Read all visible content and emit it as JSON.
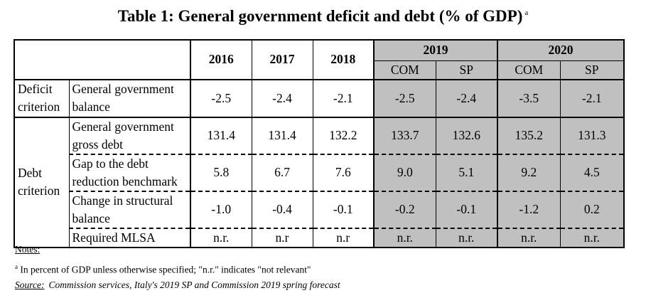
{
  "title": "Table 1: General government deficit and debt (% of GDP)",
  "title_superscript": "a",
  "years_single": [
    "2016",
    "2017",
    "2018"
  ],
  "years_double": [
    "2019",
    "2020"
  ],
  "subcolumns": [
    "COM",
    "SP",
    "COM",
    "SP"
  ],
  "rows": [
    {
      "group": "Deficit criterion",
      "label": "General government balance",
      "values": [
        "-2.5",
        "-2.4",
        "-2.1",
        "-2.5",
        "-2.4",
        "-3.5",
        "-2.1"
      ]
    },
    {
      "group": "Debt criterion",
      "label": "General government gross debt",
      "values": [
        "131.4",
        "131.4",
        "132.2",
        "133.7",
        "132.6",
        "135.2",
        "131.3"
      ]
    },
    {
      "group": "",
      "label": "Gap to the debt reduction benchmark",
      "values": [
        "5.8",
        "6.7",
        "7.6",
        "9.0",
        "5.1",
        "9.2",
        "4.5"
      ]
    },
    {
      "group": "",
      "label": "Change in structural balance",
      "values": [
        "-1.0",
        "-0.4",
        "-0.1",
        "-0.2",
        "-0.1",
        "-1.2",
        "0.2"
      ]
    },
    {
      "group": "",
      "label": "Required MLSA",
      "values": [
        "n.r.",
        "n.r",
        "n.r",
        "n.r.",
        "n.r.",
        "n.r.",
        "n.r."
      ]
    }
  ],
  "notes": {
    "heading": "Notes:",
    "footnote_marker": "a",
    "footnote": "In percent of GDP unless otherwise specified; \"n.r.\" indicates \"not relevant\"",
    "source_label": "Source:",
    "source_text": "Commission services, Italy's 2019 SP and Commission 2019 spring forecast"
  }
}
